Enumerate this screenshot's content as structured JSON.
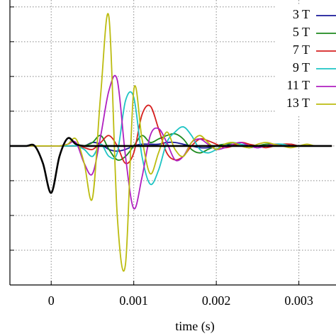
{
  "chart_data": {
    "type": "line",
    "xlabel": "time (s)",
    "x": [
      -0.0005,
      -0.0004,
      -0.0003,
      -0.0002,
      -0.0001,
      0,
      0.0001,
      0.0002,
      0.0003,
      0.0004,
      0.0005,
      0.0006,
      0.0007,
      0.0008,
      0.0009,
      0.001,
      0.0011,
      0.0012,
      0.0013,
      0.0014,
      0.0015,
      0.0016,
      0.0017,
      0.0018,
      0.0019,
      0.002,
      0.0021,
      0.0022,
      0.0023,
      0.0024,
      0.0025,
      0.0026,
      0.0027,
      0.0028,
      0.0029,
      0.003,
      0.0031,
      0.0032,
      0.0033,
      0.0034
    ],
    "xlim": [
      -0.0005,
      0.00345
    ],
    "xticks": [
      0,
      0.001,
      0.002,
      0.003
    ],
    "ylim": [
      -4,
      4.2
    ],
    "yticks": [
      -4,
      -3,
      -2,
      -1,
      0,
      1,
      2,
      3,
      4
    ],
    "grid": true,
    "legend": "upper right",
    "series": [
      {
        "color": "#000000",
        "values": [
          0,
          0,
          0,
          0,
          -0.5,
          -1.35,
          -0.3,
          0.22,
          0.05,
          0,
          0,
          0,
          0,
          0,
          0,
          0,
          0,
          0,
          0,
          0,
          0,
          0,
          0,
          0,
          0,
          0,
          0,
          0,
          0,
          0,
          0,
          0,
          0,
          0,
          0,
          0,
          0,
          0,
          0,
          0
        ]
      },
      {
        "name": "3 T",
        "color": "#1a1a9a",
        "values": [
          0,
          0,
          0,
          0,
          0,
          0,
          0,
          0,
          0,
          0,
          0.1,
          0.05,
          -0.1,
          -0.15,
          -0.1,
          0,
          0.05,
          0.05,
          0.05,
          0.1,
          0.1,
          0.05,
          0,
          -0.05,
          -0.05,
          0,
          0,
          0.05,
          0,
          0,
          -0.05,
          0,
          0,
          0,
          0.05,
          0,
          0,
          0,
          0,
          0
        ]
      },
      {
        "name": "5 T",
        "color": "#1e8a1e",
        "values": [
          0,
          0,
          0,
          0,
          0,
          0,
          0,
          0,
          0,
          0,
          0.1,
          0.3,
          -0.1,
          -0.4,
          -0.3,
          0,
          0.3,
          0.1,
          0.2,
          0.3,
          0.35,
          0.2,
          -0.1,
          -0.2,
          -0.1,
          0,
          0.05,
          0.05,
          0,
          -0.05,
          0,
          0.05,
          0.05,
          0,
          0,
          0,
          0,
          0,
          0,
          0
        ]
      },
      {
        "name": "7 T",
        "color": "#d62020",
        "values": [
          0,
          0,
          0,
          0,
          0,
          0,
          0,
          0,
          0,
          -0.05,
          -0.1,
          0.1,
          0.3,
          0,
          -0.5,
          -0.2,
          0.9,
          1.15,
          0.5,
          -0.2,
          -0.4,
          -0.3,
          0,
          0.2,
          0.15,
          0.05,
          -0.05,
          0,
          0.1,
          0.05,
          0,
          -0.05,
          0,
          0.05,
          0.05,
          0,
          0,
          0,
          0,
          0
        ]
      },
      {
        "name": "9 T",
        "color": "#1ec4c4",
        "values": [
          0,
          0,
          0,
          0,
          0,
          0,
          0,
          0,
          0,
          -0.1,
          -0.3,
          0.05,
          -0.3,
          -0.2,
          1.3,
          1.4,
          -0.3,
          -1.1,
          -0.7,
          0.1,
          0.4,
          0.55,
          0.3,
          -0.1,
          -0.2,
          -0.1,
          0.05,
          0.1,
          0.05,
          0,
          -0.05,
          0,
          0.05,
          0.05,
          0,
          0,
          0,
          0,
          0,
          0
        ]
      },
      {
        "name": "11 T",
        "color": "#b020c0",
        "values": [
          0,
          0,
          0,
          0,
          0,
          0,
          0,
          0.05,
          0.1,
          -0.5,
          -0.8,
          0.3,
          1.6,
          1.9,
          -0.3,
          -1.8,
          -0.9,
          0.3,
          0.5,
          0.1,
          -0.4,
          -0.3,
          0.1,
          0.2,
          0.05,
          -0.1,
          -0.05,
          0.05,
          0.1,
          0,
          -0.05,
          0,
          0.05,
          0,
          0,
          0,
          0,
          0,
          0,
          0
        ]
      },
      {
        "name": "13 T",
        "color": "#bcbc10",
        "values": [
          0,
          0,
          0,
          0,
          0,
          0,
          0,
          0.05,
          0.2,
          -0.5,
          -1.5,
          1.5,
          3.7,
          -2.0,
          -3.4,
          1.6,
          0.2,
          -0.8,
          -0.2,
          0.4,
          -0.1,
          -0.3,
          0.1,
          0.3,
          0.1,
          -0.1,
          0.05,
          0.1,
          0,
          -0.05,
          0.05,
          0.1,
          0.05,
          0,
          -0.05,
          0,
          0.05,
          0,
          0,
          0
        ]
      }
    ]
  }
}
